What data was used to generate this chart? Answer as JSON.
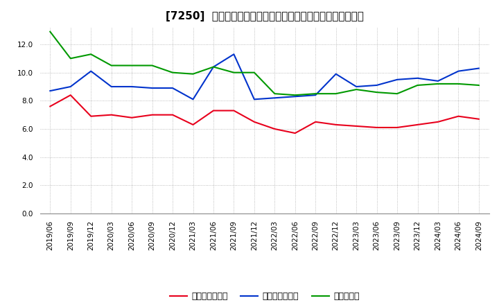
{
  "title": "[7250]  売上債権回転率、買入債務回転率、在庫回転率の推移",
  "x_labels": [
    "2019/06",
    "2019/09",
    "2019/12",
    "2020/03",
    "2020/06",
    "2020/09",
    "2020/12",
    "2021/03",
    "2021/06",
    "2021/09",
    "2021/12",
    "2022/03",
    "2022/06",
    "2022/09",
    "2022/12",
    "2023/03",
    "2023/06",
    "2023/09",
    "2023/12",
    "2024/03",
    "2024/06",
    "2024/09"
  ],
  "red": [
    7.6,
    8.4,
    6.9,
    7.0,
    6.8,
    7.0,
    7.0,
    6.3,
    7.3,
    7.3,
    6.5,
    6.0,
    5.7,
    6.5,
    6.3,
    6.2,
    6.1,
    6.1,
    6.3,
    6.5,
    6.9,
    6.7
  ],
  "blue": [
    8.7,
    9.0,
    10.1,
    9.0,
    9.0,
    8.9,
    8.9,
    8.1,
    10.4,
    11.3,
    8.1,
    8.2,
    8.3,
    8.4,
    9.9,
    9.0,
    9.1,
    9.5,
    9.6,
    9.4,
    10.1,
    10.3
  ],
  "green": [
    12.9,
    11.0,
    11.3,
    10.5,
    10.5,
    10.5,
    10.0,
    9.9,
    10.4,
    10.0,
    10.0,
    8.5,
    8.4,
    8.5,
    8.5,
    8.8,
    8.6,
    8.5,
    9.1,
    9.2,
    9.2,
    9.1
  ],
  "red_color": "#e8001c",
  "blue_color": "#0033cc",
  "green_color": "#009900",
  "ylim_min": 0,
  "ylim_max": 13.2,
  "yticks": [
    0.0,
    2.0,
    4.0,
    6.0,
    8.0,
    10.0,
    12.0
  ],
  "legend_red": "売上債権回転率",
  "legend_blue": "買入債務回転率",
  "legend_green": "在庫回転率",
  "plot_bg_color": "#ffffff",
  "fig_bg_color": "#ffffff",
  "grid_color": "#aaaaaa",
  "title_fontsize": 11,
  "tick_fontsize": 7.5,
  "legend_fontsize": 9
}
